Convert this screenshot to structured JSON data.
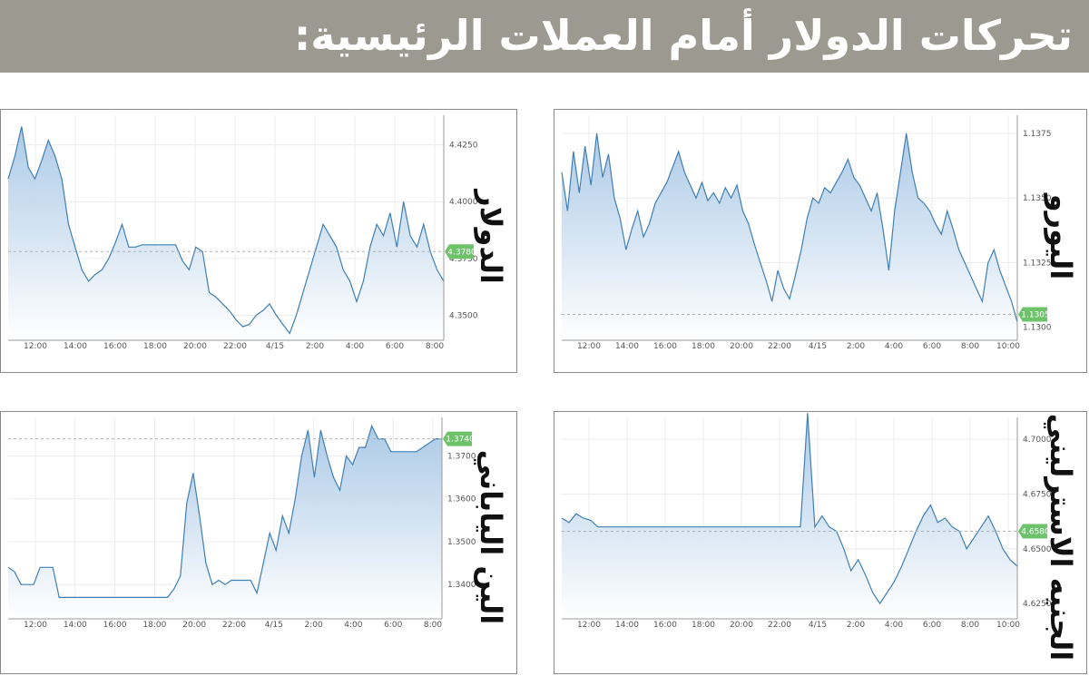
{
  "page": {
    "title": "تحركات الدولار أمام العملات الرئيسية:"
  },
  "colors": {
    "header_bg": "#9c9a90",
    "line": "#3f7fb4",
    "fill_top": "#a9c8e6",
    "fill_bottom": "#ffffff",
    "badge": "#6cc36a",
    "grid": "#ececec"
  },
  "chart_data": [
    {
      "id": "euro",
      "type": "area",
      "title": "اليورو",
      "x_ticks": [
        "12:00",
        "14:00",
        "16:00",
        "18:00",
        "20:00",
        "22:00",
        "4/15",
        "2:00",
        "4:00",
        "6:00",
        "8:00",
        "10:00"
      ],
      "y_ticks": [
        "1.1375",
        "1.1350",
        "1.1325",
        "1.1300"
      ],
      "ylim": [
        1.1295,
        1.1382
      ],
      "reference_label": "1.1305",
      "reference_value": 1.1305,
      "values": [
        1.136,
        1.1345,
        1.1368,
        1.1352,
        1.137,
        1.1355,
        1.1375,
        1.1358,
        1.1367,
        1.135,
        1.1342,
        1.133,
        1.1338,
        1.1345,
        1.1335,
        1.134,
        1.1348,
        1.1352,
        1.1356,
        1.1362,
        1.1368,
        1.136,
        1.1355,
        1.135,
        1.1356,
        1.1349,
        1.1352,
        1.1348,
        1.1354,
        1.135,
        1.1355,
        1.1345,
        1.134,
        1.1332,
        1.1325,
        1.1318,
        1.131,
        1.1322,
        1.1315,
        1.1311,
        1.132,
        1.133,
        1.1342,
        1.135,
        1.1348,
        1.1354,
        1.1352,
        1.1356,
        1.136,
        1.1365,
        1.1358,
        1.1355,
        1.135,
        1.1345,
        1.1352,
        1.1338,
        1.1322,
        1.1345,
        1.136,
        1.1375,
        1.136,
        1.135,
        1.1348,
        1.1345,
        1.134,
        1.1336,
        1.1345,
        1.1338,
        1.133,
        1.1325,
        1.132,
        1.1315,
        1.131,
        1.1325,
        1.133,
        1.1322,
        1.1316,
        1.131,
        1.1302
      ]
    },
    {
      "id": "dollar",
      "type": "area",
      "title": "الدولار",
      "x_ticks": [
        "12:00",
        "14:00",
        "16:00",
        "18:00",
        "20:00",
        "22:00",
        "4/15",
        "2:00",
        "4:00",
        "6:00",
        "8:00"
      ],
      "y_ticks": [
        "4.4250",
        "4.4000",
        "4.3750",
        "4.3500"
      ],
      "ylim": [
        4.339,
        4.438
      ],
      "reference_label": "4.3780",
      "reference_value": 4.378,
      "values": [
        4.41,
        4.42,
        4.433,
        4.415,
        4.41,
        4.418,
        4.427,
        4.42,
        4.41,
        4.39,
        4.38,
        4.37,
        4.365,
        4.368,
        4.37,
        4.375,
        4.382,
        4.39,
        4.38,
        4.38,
        4.381,
        4.381,
        4.381,
        4.381,
        4.381,
        4.381,
        4.374,
        4.37,
        4.38,
        4.378,
        4.36,
        4.358,
        4.355,
        4.352,
        4.348,
        4.345,
        4.346,
        4.35,
        4.352,
        4.355,
        4.35,
        4.346,
        4.342,
        4.35,
        4.36,
        4.37,
        4.38,
        4.39,
        4.385,
        4.38,
        4.37,
        4.365,
        4.356,
        4.365,
        4.38,
        4.39,
        4.385,
        4.395,
        4.38,
        4.4,
        4.385,
        4.38,
        4.39,
        4.378,
        4.37,
        4.365
      ]
    },
    {
      "id": "aud",
      "type": "area",
      "title": "الجنيه الاسترليني",
      "x_ticks": [
        "12:00",
        "14:00",
        "16:00",
        "18:00",
        "20:00",
        "22:00",
        "4/15",
        "2:00",
        "4:00",
        "6:00",
        "8:00",
        "10:00"
      ],
      "y_ticks": [
        "4.7000",
        "4.6750",
        "4.6500",
        "4.6250"
      ],
      "ylim": [
        4.618,
        4.71
      ],
      "reference_label": "4.6580",
      "reference_value": 4.658,
      "values": [
        4.664,
        4.662,
        4.666,
        4.664,
        4.663,
        4.66,
        4.66,
        4.66,
        4.66,
        4.66,
        4.66,
        4.66,
        4.66,
        4.66,
        4.66,
        4.66,
        4.66,
        4.66,
        4.66,
        4.66,
        4.66,
        4.66,
        4.66,
        4.66,
        4.66,
        4.66,
        4.66,
        4.66,
        4.66,
        4.66,
        4.66,
        4.66,
        4.66,
        4.66,
        4.712,
        4.66,
        4.665,
        4.66,
        4.658,
        4.65,
        4.64,
        4.645,
        4.638,
        4.63,
        4.625,
        4.63,
        4.635,
        4.642,
        4.65,
        4.658,
        4.665,
        4.67,
        4.662,
        4.664,
        4.66,
        4.658,
        4.65,
        4.655,
        4.66,
        4.665,
        4.658,
        4.65,
        4.645,
        4.642
      ]
    },
    {
      "id": "jpy",
      "type": "area",
      "title": "الين الياباني",
      "x_ticks": [
        "12:00",
        "14:00",
        "16:00",
        "18:00",
        "20:00",
        "22:00",
        "4/15",
        "2:00",
        "4:00",
        "6:00",
        "8:00"
      ],
      "y_ticks": [
        "1.3700",
        "1.3600",
        "1.3500",
        "1.3400"
      ],
      "ylim": [
        1.332,
        1.379
      ],
      "reference_label": "1.3740",
      "reference_value": 1.374,
      "values": [
        1.344,
        1.343,
        1.34,
        1.34,
        1.34,
        1.344,
        1.344,
        1.344,
        1.337,
        1.337,
        1.337,
        1.337,
        1.337,
        1.337,
        1.337,
        1.337,
        1.337,
        1.337,
        1.337,
        1.337,
        1.337,
        1.337,
        1.337,
        1.337,
        1.337,
        1.337,
        1.339,
        1.342,
        1.359,
        1.366,
        1.356,
        1.345,
        1.34,
        1.341,
        1.34,
        1.341,
        1.341,
        1.341,
        1.341,
        1.338,
        1.345,
        1.352,
        1.348,
        1.356,
        1.352,
        1.36,
        1.37,
        1.376,
        1.365,
        1.376,
        1.37,
        1.365,
        1.362,
        1.37,
        1.368,
        1.372,
        1.372,
        1.377,
        1.374,
        1.374,
        1.371,
        1.371,
        1.371,
        1.371,
        1.371,
        1.372,
        1.373,
        1.374,
        1.374
      ]
    }
  ]
}
